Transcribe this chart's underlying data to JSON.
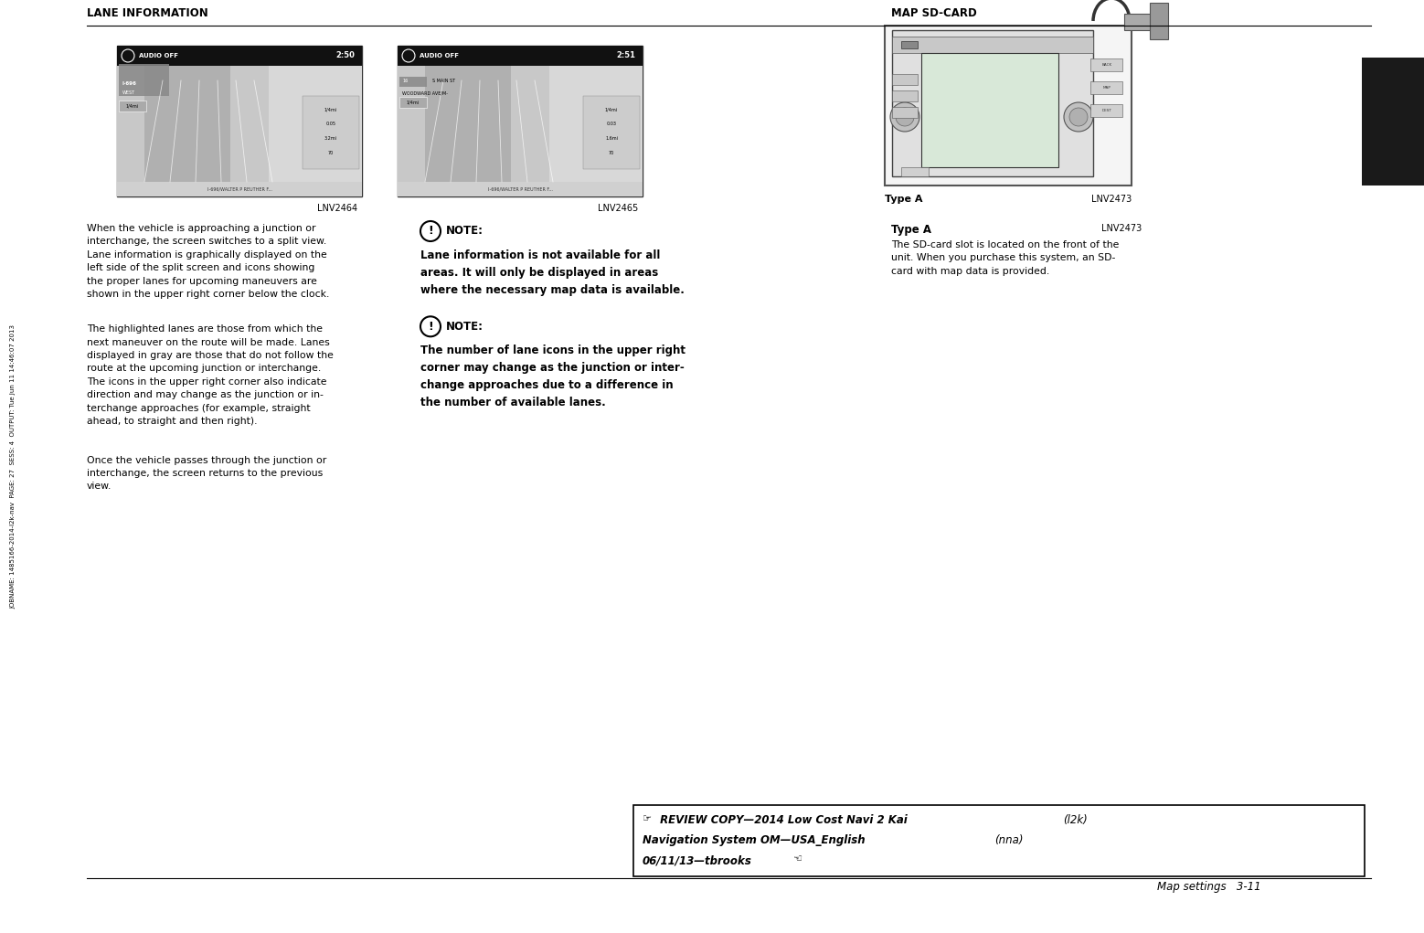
{
  "bg_color": "#ffffff",
  "text_color": "#000000",
  "sidebar_text": "JOBNAME: 1485166-2014-l2k-nav  PAGE: 27  SESS: 4  OUTPUT: Tue Jun 11 14:46:07 2013",
  "header_lane": "LANE INFORMATION",
  "header_map": "MAP SD-CARD",
  "img1_label": "LNV2464",
  "img2_label": "LNV2465",
  "img3_sublabel": "Type A",
  "img3_label": "LNV2473",
  "note1_title": "NOTE:",
  "note1_text": "Lane information is not available for all\nareas. It will only be displayed in areas\nwhere the necessary map data is available.",
  "note2_title": "NOTE:",
  "note2_text": "The number of lane icons in the upper right\ncorner may change as the junction or inter-\nchange approaches due to a difference in\nthe number of available lanes.",
  "col3_title": "Type A",
  "col3_label": "LNV2473",
  "col3_text": "The SD-card slot is located on the front of the\nunit. When you purchase this system, an SD-\ncard with map data is provided.",
  "para1": "When the vehicle is approaching a junction or\ninterchange, the screen switches to a split view.\nLane information is graphically displayed on the\nleft side of the split screen and icons showing\nthe proper lanes for upcoming maneuvers are\nshown in the upper right corner below the clock.",
  "para2": "The highlighted lanes are those from which the\nnext maneuver on the route will be made. Lanes\ndisplayed in gray are those that do not follow the\nroute at the upcoming junction or interchange.\nThe icons in the upper right corner also indicate\ndirection and may change as the junction or in-\nterchange approaches (for example, straight\nahead, to straight and then right).",
  "para3": "Once the vehicle passes through the junction or\ninterchange, the screen returns to the previous\nview.",
  "footer_right": "Map settings",
  "footer_num": "3-11",
  "review_line1_bold": "REVIEW COPY—2014 Low Cost Navi 2 Kai",
  "review_line1_normal": " (l2k)",
  "review_line2_bold": "Navigation System OM—USA_English",
  "review_line2_normal": " (nna)",
  "review_line3": "06/11/13—tbrooks",
  "dark_rect_color": "#1a1a1a"
}
